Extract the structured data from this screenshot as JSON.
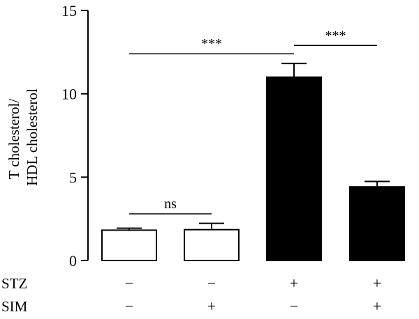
{
  "chart_data": {
    "type": "bar",
    "ylabel_lines": [
      "T cholesterol/",
      "HDL cholesterol"
    ],
    "ylim": [
      0,
      15
    ],
    "yticks": [
      0,
      5,
      10,
      15
    ],
    "grid": false,
    "groups": [
      {
        "stz": "−",
        "sim": "−",
        "value": 1.82,
        "error": 0.12,
        "fill": "#ffffff"
      },
      {
        "stz": "−",
        "sim": "+",
        "value": 1.85,
        "error": 0.38,
        "fill": "#ffffff"
      },
      {
        "stz": "+",
        "sim": "−",
        "value": 11.0,
        "error": 0.82,
        "fill": "#000000"
      },
      {
        "stz": "+",
        "sim": "+",
        "value": 4.42,
        "error": 0.32,
        "fill": "#000000"
      }
    ],
    "factor_labels": {
      "stz": "STZ",
      "sim": "SIM"
    },
    "significance": [
      {
        "from": 0,
        "to": 1,
        "level": 2.8,
        "label": "ns"
      },
      {
        "from": 0,
        "to": 2,
        "level": 12.4,
        "label": "***"
      },
      {
        "from": 2,
        "to": 3,
        "level": 12.9,
        "label": "***"
      }
    ]
  }
}
